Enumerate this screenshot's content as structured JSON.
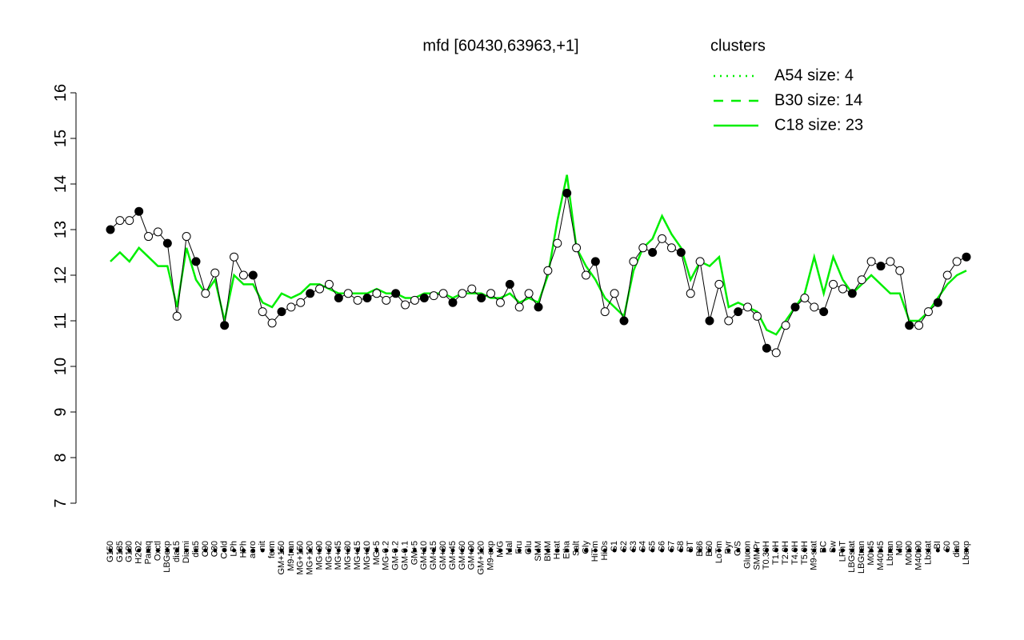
{
  "chart_data": {
    "type": "line",
    "title": "mfd [60430,63963,+1]",
    "categories": [
      "G150",
      "G135",
      "G180",
      "H2O2",
      "Paraq",
      "Oxctl",
      "LBGexp",
      "dia15",
      "Diami",
      "dia5",
      "C90",
      "C30",
      "Cold",
      "LPh",
      "HPh",
      "aero",
      "nit",
      "ferm",
      "GM+150",
      "M9-tran",
      "MG+150",
      "MG+120",
      "MG+90",
      "MG+60",
      "MG+45",
      "MG+30",
      "MG+15",
      "MG+10",
      "MG+5",
      "MG-0.2",
      "GM-0.2",
      "GM-0.1",
      "GM+5",
      "GM+10",
      "GM+15",
      "GM+30",
      "GM+45",
      "GM+60",
      "GM+90",
      "GM+120",
      "M9-exp",
      "M/G",
      "Mal",
      "Fru",
      "Glu",
      "SMM",
      "BMM",
      "Heat",
      "Etha",
      "Salt",
      "Gly",
      "HiTm",
      "HiOs",
      "S1",
      "S2",
      "S3",
      "S4",
      "S5",
      "S6",
      "S7",
      "S8",
      "BT",
      "B36",
      "B60",
      "LoTm",
      "Pyr",
      "G/S",
      "Glucon",
      "SMMPr",
      "T0.30H",
      "T1.0H",
      "T2.0H",
      "T4.0H",
      "T5.0H",
      "M9-stat",
      "BC",
      "Sw",
      "LPhT",
      "LBGstat",
      "LBGtran",
      "M0t45",
      "M40t45",
      "Lbtran",
      "Mt0",
      "M0t90",
      "M40t90",
      "Lbstat",
      "BI",
      "S0",
      "dia0",
      "Lbexp"
    ],
    "series": [
      {
        "color": "#000000",
        "values": [
          13.0,
          13.2,
          13.2,
          13.4,
          12.85,
          12.95,
          12.7,
          11.1,
          12.85,
          12.3,
          11.6,
          12.05,
          10.9,
          12.4,
          12.0,
          12.0,
          11.2,
          10.95,
          11.2,
          11.3,
          11.4,
          11.6,
          11.7,
          11.8,
          11.5,
          11.6,
          11.45,
          11.5,
          11.6,
          11.45,
          11.6,
          11.35,
          11.45,
          11.5,
          11.55,
          11.6,
          11.4,
          11.6,
          11.7,
          11.5,
          11.6,
          11.4,
          11.8,
          11.3,
          11.6,
          11.3,
          12.1,
          12.7,
          13.8,
          12.6,
          12.0,
          12.3,
          11.2,
          11.6,
          11.0,
          12.3,
          12.6,
          12.5,
          12.8,
          12.6,
          12.5,
          11.6,
          12.3,
          11.0,
          11.8,
          11.0,
          11.2,
          11.3,
          11.1,
          10.4,
          10.3,
          10.9,
          11.3,
          11.5,
          11.3,
          11.2,
          11.8,
          11.7,
          11.6,
          11.9,
          12.3,
          12.2,
          12.3,
          12.1,
          10.9,
          10.9,
          11.2,
          11.4,
          12.0,
          12.3,
          12.4
        ]
      },
      {
        "color": "#00ee00",
        "values": [
          12.3,
          12.5,
          12.3,
          12.6,
          12.4,
          12.2,
          12.2,
          11.3,
          12.6,
          11.9,
          11.6,
          11.9,
          11.0,
          12.0,
          11.8,
          11.8,
          11.4,
          11.3,
          11.6,
          11.5,
          11.6,
          11.8,
          11.8,
          11.7,
          11.6,
          11.6,
          11.6,
          11.6,
          11.7,
          11.6,
          11.6,
          11.5,
          11.5,
          11.6,
          11.6,
          11.6,
          11.5,
          11.6,
          11.6,
          11.6,
          11.5,
          11.5,
          11.6,
          11.4,
          11.5,
          11.4,
          12.0,
          13.2,
          14.2,
          12.6,
          12.2,
          11.9,
          11.5,
          11.3,
          11.1,
          12.1,
          12.6,
          12.8,
          13.3,
          12.9,
          12.6,
          11.9,
          12.3,
          12.2,
          12.4,
          11.3,
          11.4,
          11.3,
          11.2,
          10.8,
          10.7,
          11.0,
          11.3,
          11.6,
          12.4,
          11.6,
          12.4,
          11.9,
          11.6,
          11.8,
          12.0,
          11.8,
          11.6,
          11.6,
          11.0,
          11.0,
          11.2,
          11.5,
          11.8,
          12.0,
          12.1
        ]
      }
    ],
    "ylim": [
      7,
      16
    ],
    "yticks": [
      7,
      8,
      9,
      10,
      11,
      12,
      13,
      14,
      15,
      16
    ],
    "legend": {
      "title": "clusters",
      "color": "#00ee00",
      "entries": [
        {
          "name": "A54 size: 4",
          "dash": "2,6"
        },
        {
          "name": "B30 size: 14",
          "dash": "12,10"
        },
        {
          "name": "C18 size: 23",
          "dash": "none"
        }
      ]
    }
  }
}
